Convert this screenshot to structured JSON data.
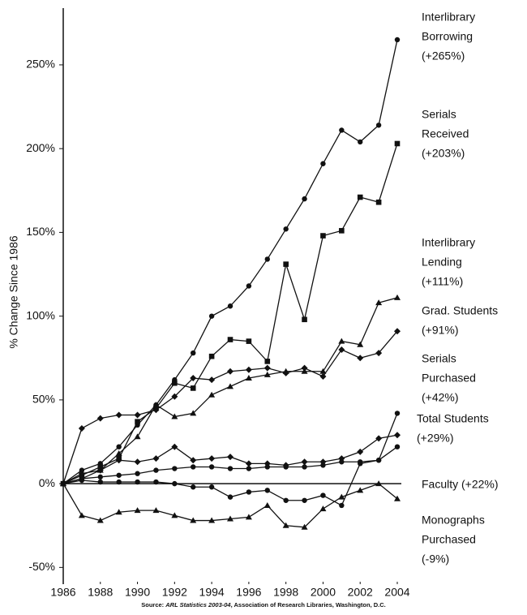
{
  "chart_data": {
    "type": "line",
    "y_label": "% Change Since 1986",
    "source": [
      "Source: ",
      "ARL Statistics 2003-04",
      ", Association of Research Libraries, Washington, D.C."
    ],
    "x": [
      1986,
      1987,
      1988,
      1989,
      1990,
      1991,
      1992,
      1993,
      1994,
      1995,
      1996,
      1997,
      1998,
      1999,
      2000,
      2001,
      2002,
      2003,
      2004
    ],
    "xlim": [
      1986,
      2004
    ],
    "xticks": [
      1986,
      1988,
      1990,
      1992,
      1994,
      1996,
      1998,
      2000,
      2002,
      2004
    ],
    "ylim": [
      -60,
      280
    ],
    "yticks": [
      {
        "value": -50,
        "label": "-50%"
      },
      {
        "value": 0,
        "label": "0%"
      },
      {
        "value": 50,
        "label": "50%"
      },
      {
        "value": 100,
        "label": "100%"
      },
      {
        "value": 150,
        "label": "150%"
      },
      {
        "value": 200,
        "label": "200%"
      },
      {
        "value": 250,
        "label": "250%"
      }
    ],
    "series": [
      {
        "label": [
          "Interlibrary",
          "Borrowing",
          "(+265%)"
        ],
        "marker": "circle",
        "color": "#111",
        "values": [
          0,
          8,
          12,
          22,
          35,
          47,
          62,
          78,
          100,
          106,
          118,
          134,
          152,
          170,
          191,
          211,
          204,
          214,
          265
        ]
      },
      {
        "label": [
          "Serials",
          "Received",
          "(+203%)"
        ],
        "marker": "square",
        "color": "#111",
        "values": [
          0,
          5,
          10,
          15,
          37,
          45,
          60,
          57,
          76,
          86,
          85,
          73,
          131,
          98,
          148,
          151,
          171,
          168,
          203
        ]
      },
      {
        "label": [
          "Interlibrary",
          "Lending",
          "(+111%)"
        ],
        "marker": "triangle",
        "color": "#111",
        "values": [
          0,
          3,
          8,
          18,
          28,
          47,
          40,
          42,
          53,
          58,
          63,
          65,
          67,
          67,
          67,
          85,
          83,
          108,
          111
        ]
      },
      {
        "label": [
          "Grad. Students",
          "(+91%)"
        ],
        "marker": "diamond",
        "color": "#111",
        "values": [
          0,
          33,
          39,
          41,
          41,
          44,
          52,
          63,
          62,
          67,
          68,
          69,
          66,
          69,
          64,
          80,
          75,
          78,
          91
        ]
      },
      {
        "label": [
          "Serials",
          "Purchased",
          "(+42%)"
        ],
        "marker": "circle",
        "color": "#111",
        "values": [
          0,
          2,
          1,
          1,
          1,
          1,
          0,
          -2,
          -2,
          -8,
          -5,
          -4,
          -10,
          -10,
          -7,
          -13,
          12,
          14,
          42
        ]
      },
      {
        "label": [
          "Total Students",
          "(+29%)"
        ],
        "marker": "diamond",
        "color": "#111",
        "values": [
          0,
          6,
          8,
          14,
          13,
          15,
          22,
          14,
          15,
          16,
          12,
          12,
          11,
          13,
          13,
          15,
          19,
          27,
          29
        ]
      },
      {
        "label": [
          "Faculty (+22%)"
        ],
        "marker": "circle",
        "color": "#111",
        "values": [
          0,
          3,
          4,
          5,
          6,
          8,
          9,
          10,
          10,
          9,
          9,
          10,
          10,
          10,
          11,
          13,
          13,
          14,
          22
        ]
      },
      {
        "label": [
          "Monographs",
          "Purchased",
          "(-9%)"
        ],
        "marker": "triangle",
        "color": "#111",
        "values": [
          0,
          -19,
          -22,
          -17,
          -16,
          -16,
          -19,
          -22,
          -22,
          -21,
          -20,
          -13,
          -25,
          -26,
          -15,
          -8,
          -4,
          0,
          -9
        ]
      }
    ]
  }
}
